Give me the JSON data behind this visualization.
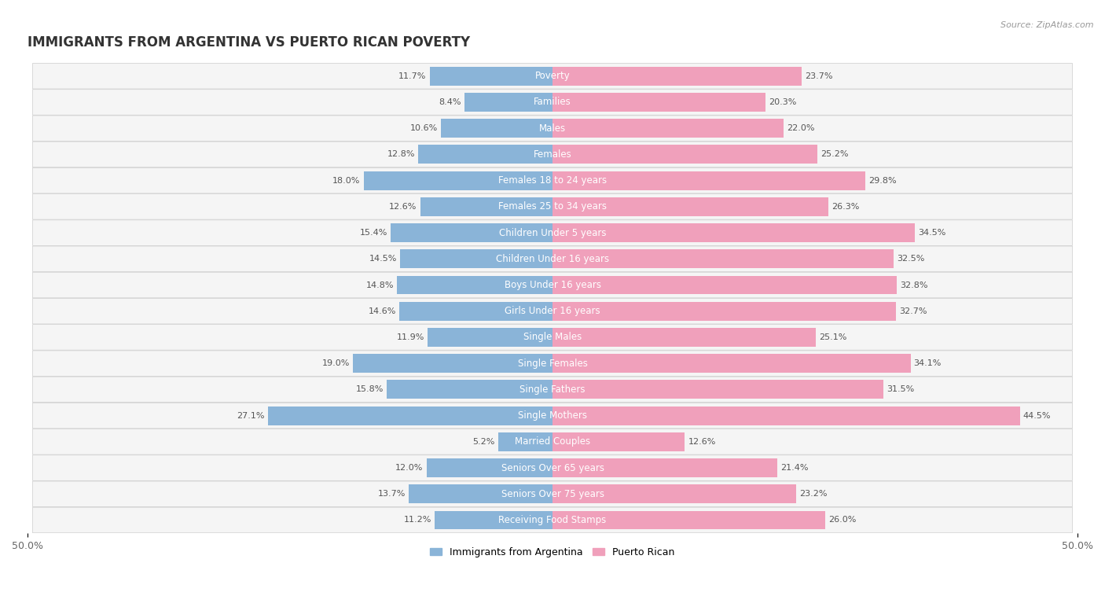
{
  "title": "IMMIGRANTS FROM ARGENTINA VS PUERTO RICAN POVERTY",
  "source": "Source: ZipAtlas.com",
  "categories": [
    "Poverty",
    "Families",
    "Males",
    "Females",
    "Females 18 to 24 years",
    "Females 25 to 34 years",
    "Children Under 5 years",
    "Children Under 16 years",
    "Boys Under 16 years",
    "Girls Under 16 years",
    "Single Males",
    "Single Females",
    "Single Fathers",
    "Single Mothers",
    "Married Couples",
    "Seniors Over 65 years",
    "Seniors Over 75 years",
    "Receiving Food Stamps"
  ],
  "argentina_values": [
    11.7,
    8.4,
    10.6,
    12.8,
    18.0,
    12.6,
    15.4,
    14.5,
    14.8,
    14.6,
    11.9,
    19.0,
    15.8,
    27.1,
    5.2,
    12.0,
    13.7,
    11.2
  ],
  "puerto_rican_values": [
    23.7,
    20.3,
    22.0,
    25.2,
    29.8,
    26.3,
    34.5,
    32.5,
    32.8,
    32.7,
    25.1,
    34.1,
    31.5,
    44.5,
    12.6,
    21.4,
    23.2,
    26.0
  ],
  "argentina_color": "#8ab4d8",
  "puerto_rican_color": "#f0a0bb",
  "background_color": "#ffffff",
  "row_band_color": "#e8e8e8",
  "row_bg_color": "#f5f5f5",
  "axis_max": 50.0,
  "legend_argentina": "Immigrants from Argentina",
  "legend_puerto_rican": "Puerto Rican",
  "title_fontsize": 12,
  "label_fontsize": 8.5,
  "value_fontsize": 8,
  "bar_height": 0.72
}
